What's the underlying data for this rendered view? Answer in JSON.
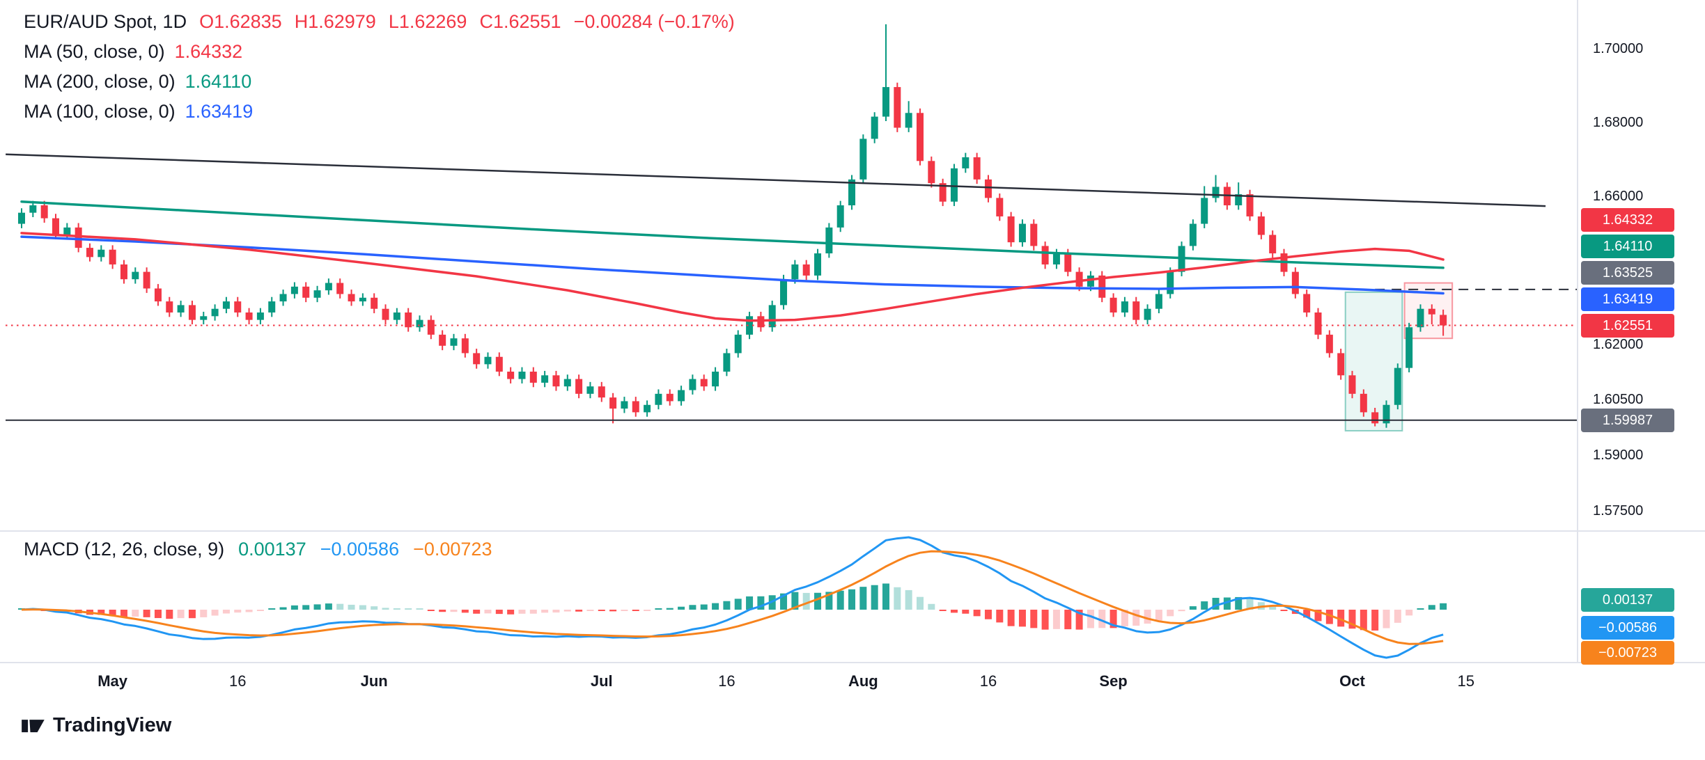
{
  "header": {
    "title": "EUR/AUD Spot, 1D",
    "ohlc": {
      "open_label": "O",
      "open": "1.62835",
      "high_label": "H",
      "high": "1.62979",
      "low_label": "L",
      "low": "1.62269",
      "close_label": "C",
      "close": "1.62551",
      "change": "−0.00284 (−0.17%)"
    },
    "indicators": [
      {
        "label": "MA (50, close, 0)",
        "value": "1.64332",
        "color": "#f23645"
      },
      {
        "label": "MA (200, close, 0)",
        "value": "1.64110",
        "color": "#089981"
      },
      {
        "label": "MA (100, close, 0)",
        "value": "1.63419",
        "color": "#2962ff"
      }
    ]
  },
  "macd_panel": {
    "label": "MACD (12, 26, close, 9)",
    "values": [
      {
        "text": "0.00137",
        "color": "#089981"
      },
      {
        "text": "−0.00586",
        "color": "#2196f3"
      },
      {
        "text": "−0.00723",
        "color": "#f7831d"
      }
    ],
    "badges": [
      {
        "text": "0.00137",
        "bg": "#26a69a"
      },
      {
        "text": "−0.00586",
        "bg": "#2196f3"
      },
      {
        "text": "−0.00723",
        "bg": "#f7831d"
      }
    ]
  },
  "price_axis": {
    "labels": [
      {
        "price": 1.7,
        "text": "1.70000"
      },
      {
        "price": 1.68,
        "text": "1.68000"
      },
      {
        "price": 1.66,
        "text": "1.66000"
      },
      {
        "price": 1.62,
        "text": "1.62000"
      },
      {
        "price": 1.605,
        "text": "1.60500"
      },
      {
        "price": 1.59,
        "text": "1.59000"
      },
      {
        "price": 1.575,
        "text": "1.57500"
      }
    ],
    "badges": [
      {
        "text": "1.64332",
        "bg": "#f23645",
        "name": "ma50"
      },
      {
        "text": "1.64110",
        "bg": "#089981",
        "name": "ma200"
      },
      {
        "text": "1.63525",
        "bg": "#696f7d",
        "name": "level"
      },
      {
        "text": "1.63419",
        "bg": "#2962ff",
        "name": "ma100"
      },
      {
        "text": "1.62551",
        "bg": "#f23645",
        "name": "last-price"
      },
      {
        "text": "1.59987",
        "bg": "#696f7d",
        "name": "support"
      }
    ]
  },
  "time_axis": {
    "labels": [
      {
        "text": "May",
        "index": 8,
        "major": true
      },
      {
        "text": "16",
        "index": 19,
        "major": false
      },
      {
        "text": "Jun",
        "index": 31,
        "major": true
      },
      {
        "text": "Jul",
        "index": 51,
        "major": true
      },
      {
        "text": "16",
        "index": 62,
        "major": false
      },
      {
        "text": "Aug",
        "index": 74,
        "major": true
      },
      {
        "text": "16",
        "index": 85,
        "major": false
      },
      {
        "text": "Sep",
        "index": 96,
        "major": true
      },
      {
        "text": "Oct",
        "index": 117,
        "major": true
      },
      {
        "text": "15",
        "index": 127,
        "major": false
      }
    ]
  },
  "logo": {
    "text": "TradingView"
  },
  "chart_data": {
    "type": "candlestick",
    "symbol": "EUR/AUD Spot",
    "interval": "1D",
    "price_axis_visible_range": [
      1.575,
      1.712
    ],
    "last": {
      "open": 1.62835,
      "high": 1.62979,
      "low": 1.62269,
      "close": 1.62551,
      "change": -0.00284,
      "change_pct": -0.17
    },
    "colors": {
      "up": "#089981",
      "down": "#f23645"
    },
    "candles": [
      [
        1.653,
        1.6572,
        1.6518,
        1.656
      ],
      [
        1.656,
        1.6592,
        1.6548,
        1.658
      ],
      [
        1.658,
        1.6592,
        1.6533,
        1.6545
      ],
      [
        1.6545,
        1.6557,
        1.6488,
        1.65
      ],
      [
        1.65,
        1.6532,
        1.6488,
        1.652
      ],
      [
        1.652,
        1.6532,
        1.6453,
        1.6465
      ],
      [
        1.6465,
        1.6477,
        1.6428,
        1.644
      ],
      [
        1.644,
        1.6472,
        1.6428,
        1.646
      ],
      [
        1.646,
        1.6472,
        1.6408,
        1.642
      ],
      [
        1.642,
        1.6432,
        1.6368,
        1.638
      ],
      [
        1.638,
        1.6412,
        1.6368,
        1.64
      ],
      [
        1.64,
        1.6412,
        1.6343,
        1.6355
      ],
      [
        1.6355,
        1.6367,
        1.6308,
        1.632
      ],
      [
        1.632,
        1.6332,
        1.6278,
        1.629
      ],
      [
        1.629,
        1.6322,
        1.6278,
        1.631
      ],
      [
        1.631,
        1.6322,
        1.6258,
        1.627
      ],
      [
        1.627,
        1.6292,
        1.6258,
        1.628
      ],
      [
        1.628,
        1.6312,
        1.6268,
        1.63
      ],
      [
        1.63,
        1.6332,
        1.6288,
        1.632
      ],
      [
        1.632,
        1.6332,
        1.6278,
        1.629
      ],
      [
        1.629,
        1.6302,
        1.6258,
        1.627
      ],
      [
        1.627,
        1.6302,
        1.6258,
        1.629
      ],
      [
        1.629,
        1.6332,
        1.6278,
        1.632
      ],
      [
        1.632,
        1.6352,
        1.6308,
        1.634
      ],
      [
        1.634,
        1.6372,
        1.6328,
        1.636
      ],
      [
        1.636,
        1.6372,
        1.6318,
        1.633
      ],
      [
        1.633,
        1.6362,
        1.6318,
        1.635
      ],
      [
        1.635,
        1.6382,
        1.6338,
        1.637
      ],
      [
        1.637,
        1.6382,
        1.6328,
        1.634
      ],
      [
        1.634,
        1.6352,
        1.6308,
        1.632
      ],
      [
        1.632,
        1.6342,
        1.6308,
        1.633
      ],
      [
        1.633,
        1.6342,
        1.6288,
        1.63
      ],
      [
        1.63,
        1.6312,
        1.6258,
        1.627
      ],
      [
        1.627,
        1.6302,
        1.6258,
        1.629
      ],
      [
        1.629,
        1.6302,
        1.6238,
        1.625
      ],
      [
        1.625,
        1.6282,
        1.6238,
        1.627
      ],
      [
        1.627,
        1.6282,
        1.6218,
        1.623
      ],
      [
        1.623,
        1.6242,
        1.6188,
        1.62
      ],
      [
        1.62,
        1.6232,
        1.6188,
        1.622
      ],
      [
        1.622,
        1.6232,
        1.6168,
        1.618
      ],
      [
        1.618,
        1.6192,
        1.6138,
        1.615
      ],
      [
        1.615,
        1.6182,
        1.6138,
        1.617
      ],
      [
        1.617,
        1.6182,
        1.6118,
        1.613
      ],
      [
        1.613,
        1.6142,
        1.6098,
        1.611
      ],
      [
        1.611,
        1.6142,
        1.6098,
        1.613
      ],
      [
        1.613,
        1.6142,
        1.6088,
        1.61
      ],
      [
        1.61,
        1.6132,
        1.6088,
        1.612
      ],
      [
        1.612,
        1.6132,
        1.6078,
        1.609
      ],
      [
        1.609,
        1.6122,
        1.6078,
        1.611
      ],
      [
        1.611,
        1.6122,
        1.6058,
        1.607
      ],
      [
        1.607,
        1.6102,
        1.6058,
        1.609
      ],
      [
        1.609,
        1.6102,
        1.6048,
        1.606
      ],
      [
        1.606,
        1.6072,
        1.599,
        1.603
      ],
      [
        1.603,
        1.6062,
        1.6018,
        1.605
      ],
      [
        1.605,
        1.6062,
        1.6008,
        1.602
      ],
      [
        1.602,
        1.6052,
        1.6008,
        1.604
      ],
      [
        1.604,
        1.6082,
        1.6028,
        1.607
      ],
      [
        1.607,
        1.6082,
        1.6038,
        1.605
      ],
      [
        1.605,
        1.6092,
        1.6038,
        1.608
      ],
      [
        1.608,
        1.6122,
        1.6068,
        1.611
      ],
      [
        1.611,
        1.6122,
        1.6078,
        1.609
      ],
      [
        1.609,
        1.6142,
        1.6078,
        1.613
      ],
      [
        1.613,
        1.6192,
        1.6118,
        1.618
      ],
      [
        1.618,
        1.6242,
        1.6168,
        1.623
      ],
      [
        1.623,
        1.6292,
        1.6218,
        1.628
      ],
      [
        1.628,
        1.6292,
        1.6238,
        1.625
      ],
      [
        1.625,
        1.6322,
        1.6238,
        1.631
      ],
      [
        1.631,
        1.6392,
        1.6298,
        1.638
      ],
      [
        1.638,
        1.6432,
        1.6368,
        1.642
      ],
      [
        1.642,
        1.6432,
        1.6378,
        1.639
      ],
      [
        1.639,
        1.6462,
        1.6378,
        1.645
      ],
      [
        1.645,
        1.6532,
        1.6438,
        1.652
      ],
      [
        1.652,
        1.6592,
        1.6508,
        1.658
      ],
      [
        1.658,
        1.6662,
        1.6568,
        1.665
      ],
      [
        1.665,
        1.6772,
        1.6638,
        1.676
      ],
      [
        1.676,
        1.6832,
        1.6748,
        1.682
      ],
      [
        1.682,
        1.707,
        1.6808,
        1.69
      ],
      [
        1.69,
        1.6912,
        1.6778,
        1.679
      ],
      [
        1.679,
        1.6862,
        1.6778,
        1.683
      ],
      [
        1.683,
        1.6842,
        1.6688,
        1.67
      ],
      [
        1.67,
        1.6712,
        1.6628,
        1.664
      ],
      [
        1.664,
        1.6652,
        1.6578,
        1.659
      ],
      [
        1.659,
        1.6692,
        1.6578,
        1.668
      ],
      [
        1.668,
        1.6722,
        1.6668,
        1.671
      ],
      [
        1.671,
        1.6722,
        1.6638,
        1.665
      ],
      [
        1.665,
        1.6662,
        1.6588,
        1.66
      ],
      [
        1.66,
        1.6612,
        1.6538,
        1.655
      ],
      [
        1.655,
        1.6562,
        1.6468,
        1.648
      ],
      [
        1.648,
        1.6542,
        1.6468,
        1.653
      ],
      [
        1.653,
        1.6542,
        1.6458,
        1.647
      ],
      [
        1.647,
        1.6482,
        1.6408,
        1.642
      ],
      [
        1.642,
        1.6462,
        1.6408,
        1.645
      ],
      [
        1.645,
        1.6462,
        1.6388,
        1.64
      ],
      [
        1.64,
        1.6412,
        1.6348,
        1.636
      ],
      [
        1.636,
        1.6402,
        1.6348,
        1.639
      ],
      [
        1.639,
        1.6402,
        1.6318,
        1.633
      ],
      [
        1.633,
        1.6342,
        1.6278,
        1.629
      ],
      [
        1.629,
        1.6332,
        1.6278,
        1.632
      ],
      [
        1.632,
        1.6332,
        1.6258,
        1.627
      ],
      [
        1.627,
        1.6312,
        1.6258,
        1.63
      ],
      [
        1.63,
        1.6352,
        1.6288,
        1.634
      ],
      [
        1.634,
        1.6412,
        1.6328,
        1.64
      ],
      [
        1.64,
        1.6482,
        1.6388,
        1.647
      ],
      [
        1.647,
        1.6542,
        1.6458,
        1.653
      ],
      [
        1.653,
        1.6632,
        1.6518,
        1.66
      ],
      [
        1.66,
        1.6662,
        1.6588,
        1.663
      ],
      [
        1.663,
        1.6642,
        1.6568,
        1.658
      ],
      [
        1.658,
        1.6642,
        1.6568,
        1.661
      ],
      [
        1.661,
        1.6622,
        1.6538,
        1.655
      ],
      [
        1.655,
        1.6562,
        1.6488,
        1.65
      ],
      [
        1.65,
        1.6512,
        1.6438,
        1.645
      ],
      [
        1.645,
        1.6462,
        1.6388,
        1.64
      ],
      [
        1.64,
        1.6412,
        1.6328,
        1.634
      ],
      [
        1.634,
        1.6352,
        1.6278,
        1.629
      ],
      [
        1.629,
        1.6302,
        1.6218,
        1.623
      ],
      [
        1.623,
        1.6242,
        1.6168,
        1.618
      ],
      [
        1.618,
        1.6192,
        1.6108,
        1.612
      ],
      [
        1.612,
        1.6132,
        1.6058,
        1.607
      ],
      [
        1.607,
        1.6082,
        1.6008,
        1.602
      ],
      [
        1.602,
        1.6032,
        1.5982,
        1.599
      ],
      [
        1.599,
        1.6052,
        1.5978,
        1.604
      ],
      [
        1.604,
        1.6152,
        1.6028,
        1.614
      ],
      [
        1.614,
        1.6262,
        1.6128,
        1.625
      ],
      [
        1.625,
        1.6312,
        1.6238,
        1.63
      ],
      [
        1.63,
        1.6312,
        1.6258,
        1.6285
      ],
      [
        1.62835,
        1.62979,
        1.62269,
        1.62551
      ]
    ],
    "moving_averages": [
      {
        "period": 50,
        "color": "#f23645",
        "last": 1.64332,
        "points": [
          [
            0,
            1.6505
          ],
          [
            10,
            1.6488
          ],
          [
            20,
            1.646
          ],
          [
            30,
            1.6425
          ],
          [
            40,
            1.6388
          ],
          [
            48,
            1.635
          ],
          [
            54,
            1.6315
          ],
          [
            58,
            1.629
          ],
          [
            61,
            1.6274
          ],
          [
            64,
            1.6268
          ],
          [
            68,
            1.627
          ],
          [
            72,
            1.6282
          ],
          [
            76,
            1.63
          ],
          [
            80,
            1.632
          ],
          [
            84,
            1.634
          ],
          [
            88,
            1.6357
          ],
          [
            92,
            1.6372
          ],
          [
            96,
            1.6386
          ],
          [
            100,
            1.6398
          ],
          [
            104,
            1.6412
          ],
          [
            108,
            1.6428
          ],
          [
            112,
            1.6442
          ],
          [
            116,
            1.6455
          ],
          [
            119,
            1.6462
          ],
          [
            122,
            1.6457
          ],
          [
            125,
            1.64332
          ]
        ]
      },
      {
        "period": 200,
        "color": "#089981",
        "last": 1.6411,
        "points": [
          [
            0,
            1.659
          ],
          [
            15,
            1.6565
          ],
          [
            30,
            1.654
          ],
          [
            45,
            1.6515
          ],
          [
            60,
            1.6492
          ],
          [
            75,
            1.6472
          ],
          [
            90,
            1.6452
          ],
          [
            100,
            1.644
          ],
          [
            110,
            1.6428
          ],
          [
            118,
            1.6419
          ],
          [
            125,
            1.6411
          ]
        ]
      },
      {
        "period": 100,
        "color": "#2962ff",
        "last": 1.63419,
        "points": [
          [
            0,
            1.6495
          ],
          [
            10,
            1.6482
          ],
          [
            20,
            1.6466
          ],
          [
            30,
            1.6448
          ],
          [
            40,
            1.6428
          ],
          [
            50,
            1.6408
          ],
          [
            60,
            1.639
          ],
          [
            68,
            1.6376
          ],
          [
            76,
            1.6366
          ],
          [
            84,
            1.636
          ],
          [
            92,
            1.6356
          ],
          [
            100,
            1.6354
          ],
          [
            106,
            1.6357
          ],
          [
            112,
            1.6359
          ],
          [
            118,
            1.6352
          ],
          [
            122,
            1.6346
          ],
          [
            125,
            1.63419
          ]
        ]
      }
    ],
    "levels": [
      {
        "price": 1.59987,
        "style": "solid",
        "color": "#2a2e39",
        "extent": "full"
      },
      {
        "price": 1.63525,
        "style": "dashed",
        "color": "#2a2e39",
        "extent": "right",
        "from_index": 119
      },
      {
        "price": 1.62551,
        "style": "dotted",
        "color": "#f23645",
        "extent": "full"
      }
    ],
    "trendlines": [
      {
        "from_index": -1.4,
        "from_price": 1.6718,
        "to_index": 134,
        "to_price": 1.6578,
        "color": "#2a2e39"
      }
    ],
    "highlight_boxes": [
      {
        "from_index": 116.4,
        "to_index": 121.4,
        "top": 1.6345,
        "bottom": 1.597,
        "fill": "rgba(8,153,129,0.09)",
        "stroke": "rgba(8,153,129,0.45)"
      },
      {
        "from_index": 121.6,
        "to_index": 125.8,
        "top": 1.637,
        "bottom": 1.622,
        "fill": "rgba(242,54,69,0.07)",
        "stroke": "rgba(242,54,69,0.50)"
      }
    ],
    "macd": {
      "fast": 12,
      "slow": 26,
      "source": "close",
      "signal": 9,
      "last_hist": 0.00137,
      "last_macd": -0.00586,
      "last_signal": -0.00723,
      "colors": {
        "macd": "#2196f3",
        "signal": "#f7831d",
        "hist_up": "#26a69a",
        "hist_up_fade": "#b2dfdb",
        "hist_down": "#ff5252",
        "hist_down_fade": "#fccbcd"
      }
    }
  }
}
